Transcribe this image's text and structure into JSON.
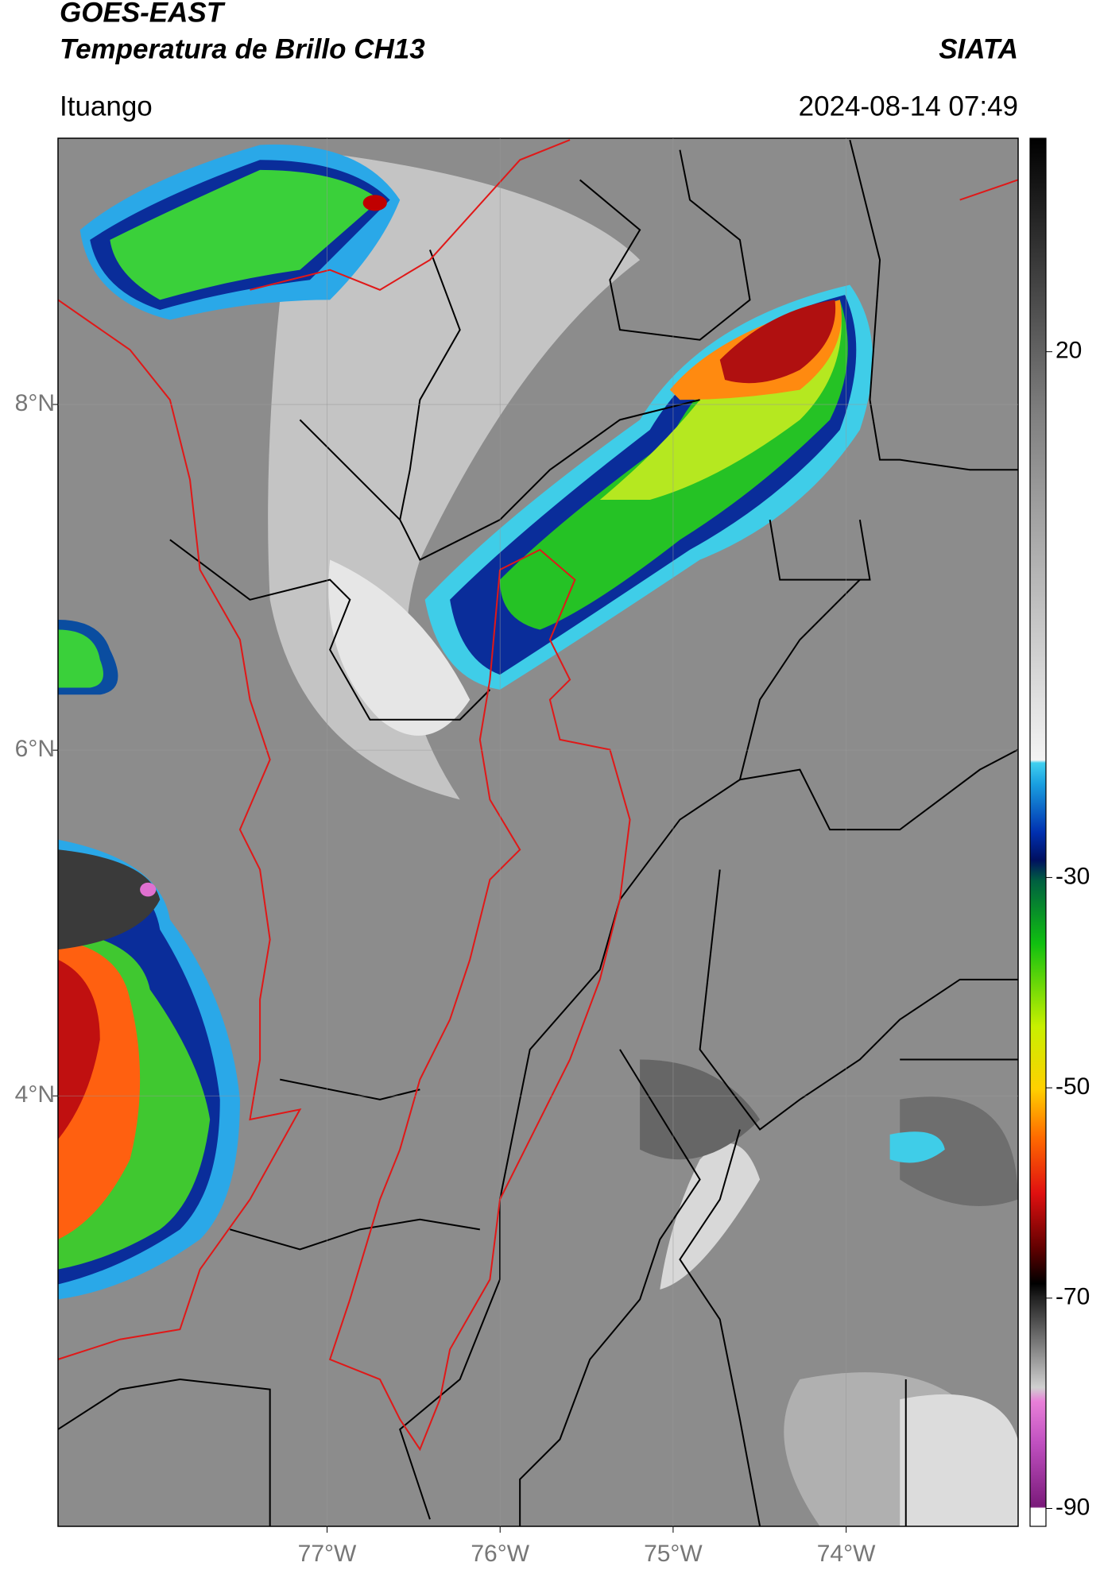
{
  "title_line1": "GOES-EAST",
  "title_line2": "Temperatura de Brillo CH13",
  "brand": "SIATA",
  "location": "Ituango",
  "timestamp": "2024-08-14 07:49",
  "map": {
    "xlim": [
      -78.555,
      -73.006
    ],
    "ylim": [
      1.51,
      9.54
    ],
    "xticks": [
      {
        "value": -77,
        "label": "77°W"
      },
      {
        "value": -76,
        "label": "76°W"
      },
      {
        "value": -75,
        "label": "75°W"
      },
      {
        "value": -74,
        "label": "74°W"
      }
    ],
    "yticks": [
      {
        "value": 8,
        "label": "8°N"
      },
      {
        "value": 6,
        "label": "6°N"
      },
      {
        "value": 4,
        "label": "4°N"
      }
    ],
    "grid": true
  },
  "colorbar": {
    "lim": [
      -91.7,
      40.3
    ],
    "ticks": [
      20,
      -30,
      -50,
      -70,
      -90
    ]
  }
}
